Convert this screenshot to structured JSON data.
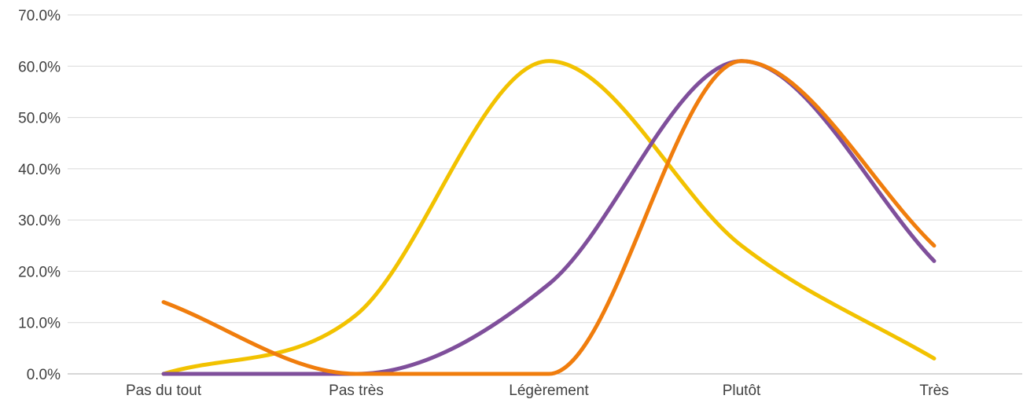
{
  "chart_data": {
    "type": "line",
    "categories": [
      "Pas du tout",
      "Pas très",
      "Légèrement",
      "Plutôt",
      "Très"
    ],
    "ylim": [
      0,
      70
    ],
    "yticks": [
      0,
      10,
      20,
      30,
      40,
      50,
      60,
      70
    ],
    "ytick_labels": [
      "0.0%",
      "10.0%",
      "20.0%",
      "30.0%",
      "40.0%",
      "50.0%",
      "60.0%",
      "70.0%"
    ],
    "grid": true,
    "smooth": true,
    "series": [
      {
        "color": "#f2c200",
        "values": [
          0,
          11.5,
          61,
          25,
          3
        ]
      },
      {
        "color": "#7f4f9b",
        "values": [
          0,
          0,
          17.5,
          61,
          22
        ]
      },
      {
        "color": "#f07d0d",
        "values": [
          14,
          0,
          0,
          61,
          25
        ]
      }
    ]
  }
}
